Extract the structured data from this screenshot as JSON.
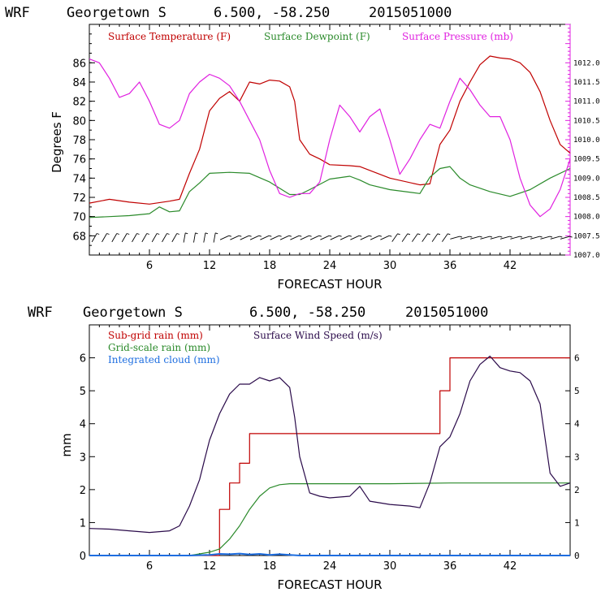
{
  "chart_data": [
    {
      "type": "line",
      "header": {
        "model": "WRF",
        "location": "Georgetown S",
        "coords": "6.500, -58.250",
        "run": "2015051000"
      },
      "xlabel": "FORECAST HOUR",
      "ylabel": "Degrees F",
      "xlim": [
        0,
        48
      ],
      "ylim": [
        66,
        90
      ],
      "xticks": [
        6,
        12,
        18,
        24,
        30,
        36,
        42
      ],
      "yticks": [
        68,
        70,
        72,
        74,
        76,
        78,
        80,
        82,
        84,
        86
      ],
      "y2lim": [
        1007.0,
        1013.0
      ],
      "y2ticks": [
        "1007.0",
        "1007.5",
        "1008.0",
        "1008.5",
        "1009.0",
        "1009.5",
        "1010.0",
        "1010.5",
        "1011.0",
        "1011.5",
        "1012.0"
      ],
      "legend": [
        {
          "label": "Surface Temperature (F)",
          "color": "#c00000"
        },
        {
          "label": "Surface Dewpoint (F)",
          "color": "#2a8a2a"
        },
        {
          "label": "Surface Pressure (mb)",
          "color": "#e020e0"
        }
      ],
      "series": [
        {
          "key": "temp",
          "color": "#c00000",
          "axis": "left",
          "x": [
            0,
            2,
            4,
            6,
            8,
            9,
            10,
            11,
            12,
            13,
            14,
            15,
            16,
            17,
            18,
            19,
            20,
            20.5,
            21,
            22,
            23,
            24,
            26,
            27,
            30,
            33,
            34,
            35,
            36,
            37,
            38,
            39,
            40,
            41,
            42,
            43,
            44,
            45,
            46,
            47,
            48
          ],
          "y": [
            71.4,
            71.8,
            71.5,
            71.3,
            71.6,
            71.8,
            74.5,
            77,
            81,
            82.3,
            83,
            82,
            84,
            83.8,
            84.2,
            84.1,
            83.5,
            82,
            78,
            76.5,
            76,
            75.4,
            75.3,
            75.2,
            74,
            73.3,
            73.4,
            77.5,
            79,
            82,
            84,
            85.8,
            86.7,
            86.5,
            86.4,
            86,
            85,
            83,
            80,
            77.5,
            76.6
          ]
        },
        {
          "key": "dewpoint",
          "color": "#2a8a2a",
          "axis": "left",
          "x": [
            0,
            2,
            4,
            6,
            7,
            8,
            9,
            10,
            11,
            12,
            14,
            16,
            18,
            20,
            21,
            22,
            24,
            26,
            27,
            28,
            30,
            33,
            34,
            35,
            36,
            37,
            38,
            40,
            42,
            44,
            46,
            48
          ],
          "y": [
            69.9,
            70,
            70.1,
            70.3,
            71,
            70.5,
            70.6,
            72.6,
            73.5,
            74.5,
            74.6,
            74.5,
            73.6,
            72.3,
            72.3,
            72.8,
            73.9,
            74.2,
            73.8,
            73.3,
            72.8,
            72.4,
            74.1,
            75,
            75.2,
            74,
            73.3,
            72.6,
            72.1,
            72.8,
            74,
            75
          ]
        },
        {
          "key": "pressure",
          "color": "#e020e0",
          "axis": "right",
          "x": [
            0,
            1,
            2,
            3,
            4,
            5,
            6,
            7,
            8,
            9,
            10,
            11,
            12,
            13,
            14,
            15,
            16,
            17,
            18,
            19,
            20,
            21,
            22,
            23,
            24,
            25,
            26,
            27,
            28,
            29,
            30,
            31,
            32,
            33,
            34,
            35,
            36,
            37,
            38,
            39,
            40,
            41,
            42,
            43,
            44,
            45,
            46,
            47,
            48
          ],
          "y": [
            1012.1,
            1012.0,
            1011.6,
            1011.1,
            1011.2,
            1011.5,
            1011.0,
            1010.4,
            1010.3,
            1010.5,
            1011.2,
            1011.5,
            1011.7,
            1011.6,
            1011.4,
            1011.0,
            1010.5,
            1010.0,
            1009.2,
            1008.6,
            1008.5,
            1008.6,
            1008.6,
            1008.9,
            1010.0,
            1010.9,
            1010.6,
            1010.2,
            1010.6,
            1010.8,
            1010.0,
            1009.1,
            1009.5,
            1010.0,
            1010.4,
            1010.3,
            1011.0,
            1011.6,
            1011.3,
            1010.9,
            1010.6,
            1010.6,
            1010.0,
            1009.0,
            1008.3,
            1008.0,
            1008.2,
            1008.7,
            1009.5
          ]
        }
      ],
      "wind_barbs": true
    },
    {
      "type": "line",
      "header": {
        "model": "WRF",
        "location": "Georgetown S",
        "coords": "6.500, -58.250",
        "run": "2015051000"
      },
      "xlabel": "FORECAST HOUR",
      "ylabel": "mm",
      "xlim": [
        0,
        48
      ],
      "ylim": [
        0,
        7
      ],
      "xticks": [
        6,
        12,
        18,
        24,
        30,
        36,
        42
      ],
      "yticks": [
        0,
        1,
        2,
        3,
        4,
        5,
        6
      ],
      "y2ticks": [
        0,
        1,
        2,
        3,
        4,
        5,
        6
      ],
      "legend": [
        {
          "label": "Sub-grid rain (mm)",
          "color": "#c00000"
        },
        {
          "label": "Grid-scale rain (mm)",
          "color": "#2a8a2a"
        },
        {
          "label": "Integrated cloud (mm)",
          "color": "#1e6ee0"
        },
        {
          "label": "Surface Wind Speed (m/s)",
          "color": "#2a0a4a"
        }
      ],
      "series": [
        {
          "key": "subgrid",
          "color": "#c00000",
          "step": true,
          "x": [
            0,
            12,
            13,
            14,
            15,
            16,
            34,
            35,
            36,
            48
          ],
          "y": [
            0,
            0,
            1.4,
            2.2,
            2.8,
            3.7,
            3.7,
            5.0,
            6.0,
            6.0
          ]
        },
        {
          "key": "gridscale",
          "color": "#2a8a2a",
          "x": [
            0,
            10,
            11,
            12,
            13,
            14,
            15,
            16,
            17,
            18,
            19,
            20,
            22,
            30,
            36,
            40,
            48
          ],
          "y": [
            0,
            0,
            0.05,
            0.1,
            0.2,
            0.5,
            0.9,
            1.4,
            1.8,
            2.05,
            2.15,
            2.18,
            2.18,
            2.18,
            2.2,
            2.2,
            2.2
          ]
        },
        {
          "key": "cloud",
          "color": "#1e6ee0",
          "x": [
            0,
            10,
            12,
            13,
            14,
            15,
            16,
            17,
            18,
            19,
            20,
            21,
            48
          ],
          "y": [
            0,
            0,
            0.02,
            0.05,
            0.04,
            0.06,
            0.03,
            0.05,
            0.02,
            0.04,
            0.02,
            0,
            0
          ]
        },
        {
          "key": "wind",
          "color": "#2a0a4a",
          "x": [
            0,
            2,
            4,
            6,
            8,
            9,
            10,
            11,
            11.5,
            12,
            13,
            14,
            15,
            16,
            17,
            18,
            19,
            20,
            20.5,
            21,
            22,
            23,
            24,
            26,
            27,
            28,
            30,
            32,
            33,
            34,
            35,
            36,
            37,
            38,
            39,
            40,
            41,
            42,
            43,
            44,
            45,
            46,
            47,
            48
          ],
          "y": [
            0.82,
            0.8,
            0.75,
            0.7,
            0.75,
            0.9,
            1.5,
            2.3,
            2.9,
            3.5,
            4.3,
            4.9,
            5.2,
            5.2,
            5.4,
            5.3,
            5.4,
            5.1,
            4.2,
            3.0,
            1.9,
            1.8,
            1.75,
            1.8,
            2.1,
            1.65,
            1.55,
            1.5,
            1.45,
            2.2,
            3.3,
            3.6,
            4.3,
            5.3,
            5.8,
            6.05,
            5.7,
            5.6,
            5.55,
            5.3,
            4.6,
            2.5,
            2.1,
            2.2
          ]
        }
      ]
    }
  ]
}
